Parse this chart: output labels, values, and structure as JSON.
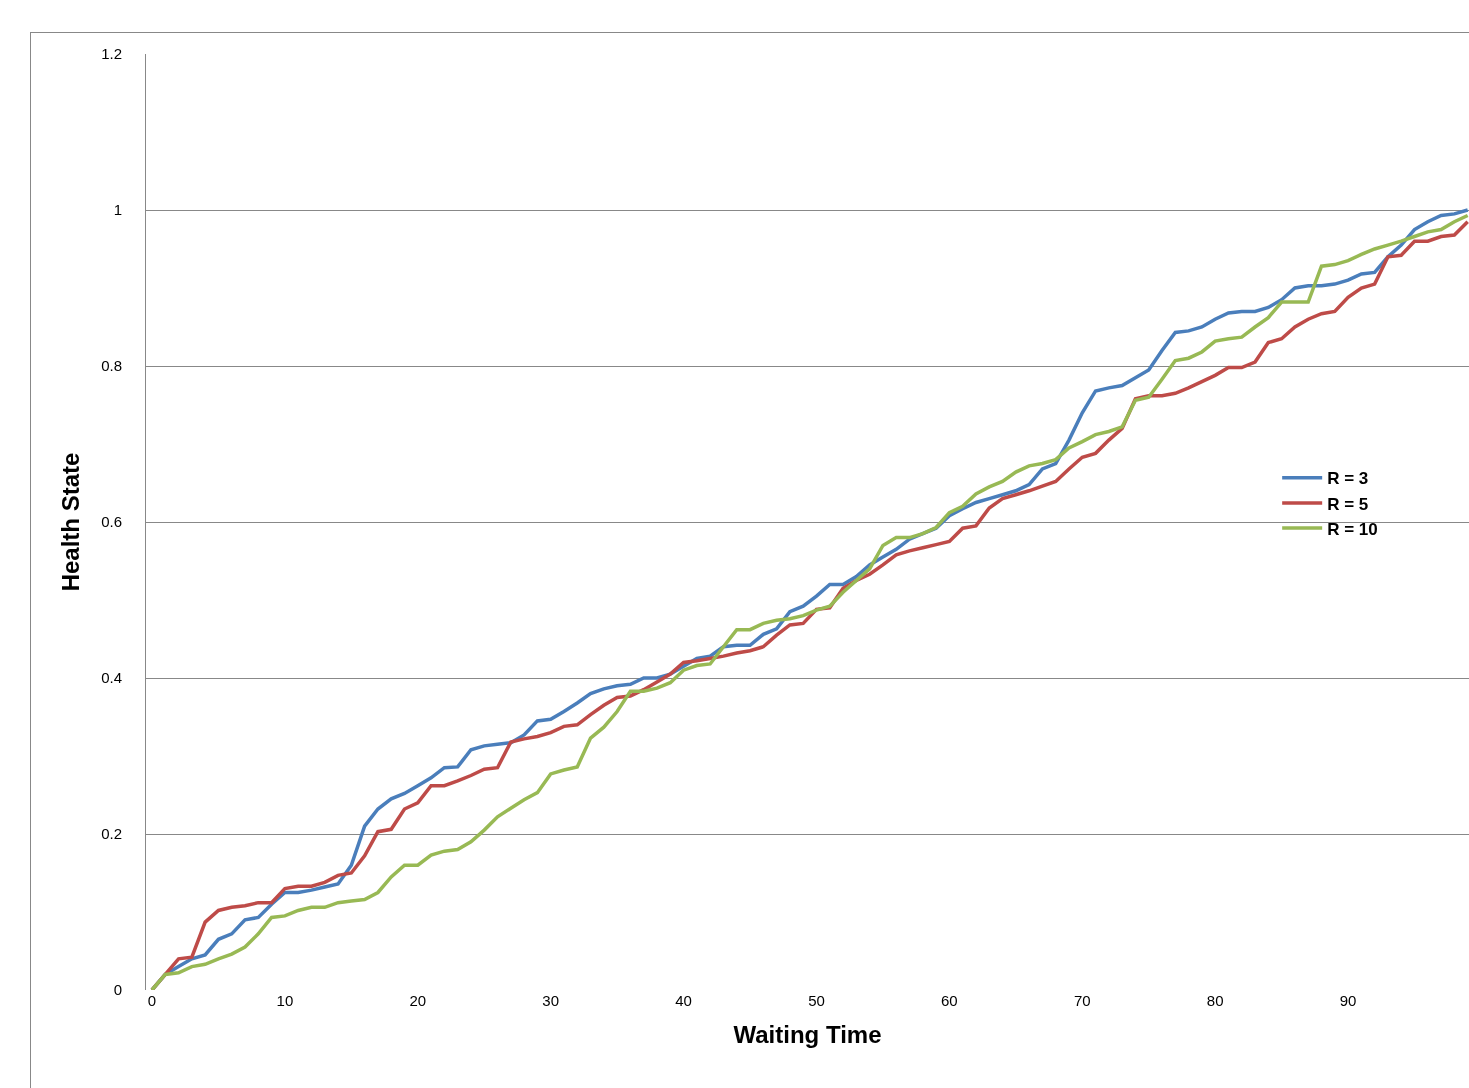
{
  "chart_data": {
    "type": "line",
    "xlabel": "Waiting Time",
    "ylabel": "Health State",
    "x": [
      0,
      1,
      2,
      3,
      4,
      5,
      6,
      7,
      8,
      9,
      10,
      11,
      12,
      13,
      14,
      15,
      16,
      17,
      18,
      19,
      20,
      21,
      22,
      23,
      24,
      25,
      26,
      27,
      28,
      29,
      30,
      31,
      32,
      33,
      34,
      35,
      36,
      37,
      38,
      39,
      40,
      41,
      42,
      43,
      44,
      45,
      46,
      47,
      48,
      49,
      50,
      51,
      52,
      53,
      54,
      55,
      56,
      57,
      58,
      59,
      60,
      61,
      62,
      63,
      64,
      65,
      66,
      67,
      68,
      69,
      70,
      71,
      72,
      73,
      74,
      75,
      76,
      77,
      78,
      79,
      80,
      81,
      82,
      83,
      84,
      85,
      86,
      87,
      88,
      89,
      90,
      91,
      92,
      93,
      94,
      95,
      96,
      97,
      98,
      99
    ],
    "series": [
      {
        "name": "R = 3",
        "color": "#4a7ebb",
        "values": [
          0,
          0.02,
          0.03,
          0.04,
          0.045,
          0.065,
          0.072,
          0.09,
          0.093,
          0.11,
          0.125,
          0.125,
          0.128,
          0.132,
          0.136,
          0.16,
          0.21,
          0.232,
          0.245,
          0.252,
          0.262,
          0.272,
          0.285,
          0.286,
          0.308,
          0.313,
          0.315,
          0.317,
          0.327,
          0.345,
          0.347,
          0.357,
          0.368,
          0.38,
          0.386,
          0.39,
          0.392,
          0.4,
          0.4,
          0.405,
          0.415,
          0.425,
          0.428,
          0.44,
          0.442,
          0.442,
          0.456,
          0.463,
          0.485,
          0.492,
          0.505,
          0.52,
          0.52,
          0.53,
          0.545,
          0.555,
          0.565,
          0.578,
          0.585,
          0.592,
          0.608,
          0.617,
          0.625,
          0.63,
          0.635,
          0.64,
          0.648,
          0.668,
          0.675,
          0.705,
          0.74,
          0.768,
          0.772,
          0.775,
          0.785,
          0.795,
          0.82,
          0.843,
          0.845,
          0.85,
          0.86,
          0.868,
          0.87,
          0.87,
          0.875,
          0.885,
          0.9,
          0.903,
          0.903,
          0.905,
          0.91,
          0.918,
          0.92,
          0.94,
          0.955,
          0.975,
          0.985,
          0.993,
          0.995,
          1.0
        ]
      },
      {
        "name": "R = 5",
        "color": "#be4b48",
        "values": [
          0,
          0.02,
          0.04,
          0.042,
          0.087,
          0.102,
          0.106,
          0.108,
          0.112,
          0.112,
          0.13,
          0.133,
          0.133,
          0.138,
          0.147,
          0.15,
          0.172,
          0.203,
          0.206,
          0.232,
          0.24,
          0.262,
          0.262,
          0.268,
          0.275,
          0.283,
          0.285,
          0.318,
          0.322,
          0.325,
          0.33,
          0.338,
          0.34,
          0.353,
          0.365,
          0.375,
          0.377,
          0.385,
          0.395,
          0.405,
          0.42,
          0.422,
          0.425,
          0.428,
          0.432,
          0.435,
          0.44,
          0.455,
          0.468,
          0.47,
          0.488,
          0.49,
          0.515,
          0.525,
          0.533,
          0.545,
          0.558,
          0.563,
          0.567,
          0.571,
          0.575,
          0.592,
          0.595,
          0.618,
          0.63,
          0.635,
          0.64,
          0.646,
          0.652,
          0.668,
          0.683,
          0.688,
          0.705,
          0.72,
          0.758,
          0.762,
          0.762,
          0.765,
          0.772,
          0.78,
          0.788,
          0.798,
          0.798,
          0.805,
          0.83,
          0.835,
          0.85,
          0.86,
          0.867,
          0.87,
          0.888,
          0.9,
          0.905,
          0.94,
          0.942,
          0.96,
          0.96,
          0.966,
          0.968,
          0.985
        ]
      },
      {
        "name": "R = 10",
        "color": "#98b954",
        "values": [
          0,
          0.02,
          0.022,
          0.03,
          0.033,
          0.04,
          0.046,
          0.055,
          0.072,
          0.093,
          0.095,
          0.102,
          0.106,
          0.106,
          0.112,
          0.114,
          0.116,
          0.125,
          0.145,
          0.16,
          0.16,
          0.173,
          0.178,
          0.18,
          0.19,
          0.205,
          0.222,
          0.233,
          0.244,
          0.253,
          0.277,
          0.282,
          0.286,
          0.323,
          0.337,
          0.357,
          0.383,
          0.383,
          0.387,
          0.394,
          0.41,
          0.416,
          0.418,
          0.44,
          0.462,
          0.462,
          0.47,
          0.474,
          0.476,
          0.48,
          0.487,
          0.492,
          0.51,
          0.525,
          0.54,
          0.57,
          0.58,
          0.58,
          0.585,
          0.593,
          0.612,
          0.62,
          0.636,
          0.645,
          0.652,
          0.664,
          0.672,
          0.675,
          0.68,
          0.695,
          0.703,
          0.712,
          0.716,
          0.722,
          0.756,
          0.76,
          0.783,
          0.807,
          0.81,
          0.818,
          0.832,
          0.835,
          0.837,
          0.85,
          0.862,
          0.882,
          0.882,
          0.882,
          0.928,
          0.93,
          0.935,
          0.943,
          0.95,
          0.955,
          0.96,
          0.966,
          0.972,
          0.975,
          0.985,
          0.993
        ]
      }
    ],
    "xlim": [
      -0.45,
      99.1
    ],
    "xticks": [
      0,
      10,
      20,
      30,
      40,
      50,
      60,
      70,
      80,
      90
    ],
    "ylim": [
      0,
      1.2
    ],
    "yticks": [
      0,
      0.2,
      0.4,
      0.6,
      0.8,
      1,
      1.2
    ],
    "grid": "y",
    "legend": "right",
    "marker": "none",
    "line_style": "solid"
  }
}
